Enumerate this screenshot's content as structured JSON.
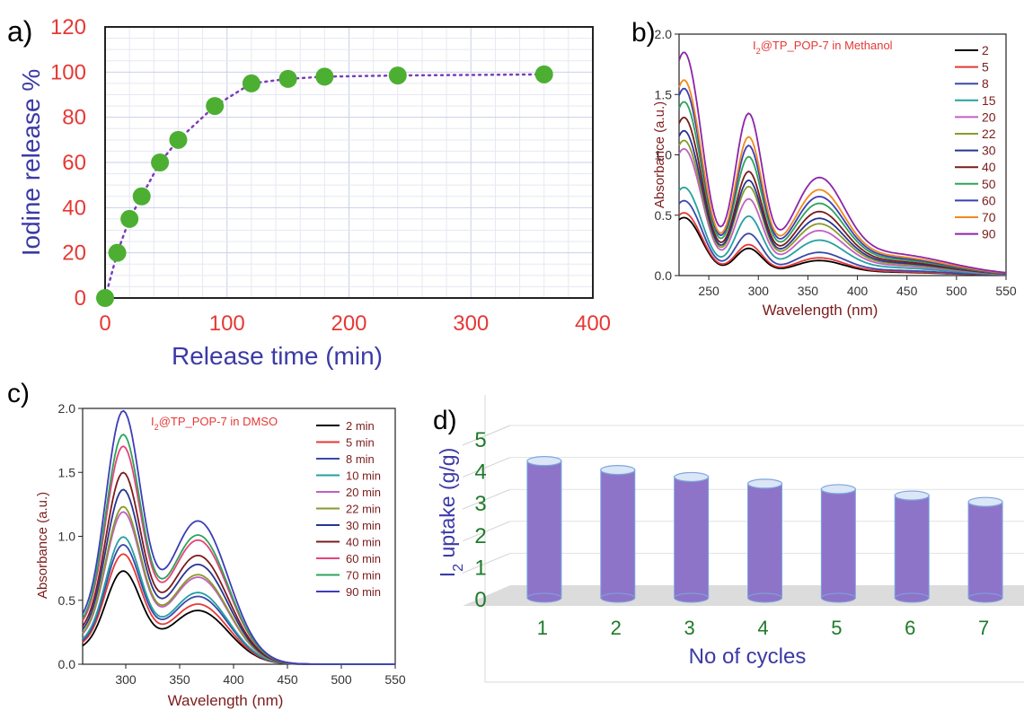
{
  "chart_data": [
    {
      "panel": "a)",
      "type": "scatter",
      "title": "",
      "xlabel": "Release time  (min)",
      "ylabel": "Iodine release %",
      "xlim": [
        0,
        400
      ],
      "ylim": [
        0,
        120
      ],
      "xticks": [
        "0",
        "100",
        "200",
        "300",
        "400"
      ],
      "yticks": [
        "0",
        "20",
        "40",
        "60",
        "80",
        "100",
        "120"
      ],
      "grid": true,
      "colors": {
        "marker": "#4caf32",
        "line": "#7a3fb8",
        "axis_label": "#3c3aa6",
        "tick": "#e53935"
      },
      "series": [
        {
          "x": [
            0,
            10,
            20,
            30,
            45,
            60,
            90,
            120,
            150,
            180,
            240,
            360
          ],
          "y": [
            0,
            20,
            35,
            45,
            60,
            70,
            85,
            95,
            97,
            98,
            98.5,
            99
          ]
        }
      ]
    },
    {
      "panel": "b)",
      "type": "line",
      "annotation": "I2@TP_POP-7 in Methanol",
      "xlabel": "Wavelength (nm)",
      "ylabel": "Absorbance (a.u.)",
      "xlim": [
        220,
        550
      ],
      "ylim": [
        0,
        2.0
      ],
      "xticks": [
        "250",
        "300",
        "350",
        "400",
        "450",
        "500",
        "550"
      ],
      "yticks": [
        "0.0",
        "0.5",
        "1.0",
        "1.5",
        "2.0"
      ],
      "legend": "right",
      "series": [
        {
          "name": "2",
          "color": "#000000",
          "peaks": [
            0.48,
            0.22,
            0.11
          ]
        },
        {
          "name": "5",
          "color": "#e53935",
          "peaks": [
            0.52,
            0.25,
            0.13
          ]
        },
        {
          "name": "8",
          "color": "#3949ab",
          "peaks": [
            0.62,
            0.34,
            0.17
          ]
        },
        {
          "name": "15",
          "color": "#26a0a0",
          "peaks": [
            0.73,
            0.48,
            0.26
          ]
        },
        {
          "name": "20",
          "color": "#c060c0",
          "peaks": [
            1.05,
            0.62,
            0.33
          ]
        },
        {
          "name": "22",
          "color": "#8a9a2a",
          "peaks": [
            1.12,
            0.72,
            0.38
          ]
        },
        {
          "name": "30",
          "color": "#283593",
          "peaks": [
            1.2,
            0.77,
            0.42
          ]
        },
        {
          "name": "40",
          "color": "#7b1c1c",
          "peaks": [
            1.31,
            0.84,
            0.47
          ]
        },
        {
          "name": "50",
          "color": "#2ea35a",
          "peaks": [
            1.44,
            0.96,
            0.53
          ]
        },
        {
          "name": "60",
          "color": "#3d3db8",
          "peaks": [
            1.55,
            1.05,
            0.58
          ]
        },
        {
          "name": "70",
          "color": "#f08a1c",
          "peaks": [
            1.62,
            1.12,
            0.63
          ]
        },
        {
          "name": "90",
          "color": "#8e24aa",
          "peaks": [
            1.85,
            1.31,
            0.72
          ]
        }
      ],
      "peak_positions_nm": [
        225,
        290,
        360
      ]
    },
    {
      "panel": "c)",
      "type": "line",
      "annotation": "I2@TP_POP-7 in DMSO",
      "xlabel": "Wavelength (nm)",
      "ylabel": "Absorbance (a.u.)",
      "xlim": [
        260,
        550
      ],
      "ylim": [
        0,
        2.0
      ],
      "xticks": [
        "300",
        "350",
        "400",
        "450",
        "500",
        "550"
      ],
      "yticks": [
        "0.0",
        "0.5",
        "1.0",
        "1.5",
        "2.0"
      ],
      "legend": "right",
      "series": [
        {
          "name": "2 min",
          "color": "#000000",
          "peaks": [
            0.71,
            0.42
          ]
        },
        {
          "name": "5 min",
          "color": "#e53935",
          "peaks": [
            0.84,
            0.47
          ]
        },
        {
          "name": "8 min",
          "color": "#3949ab",
          "peaks": [
            0.91,
            0.53
          ]
        },
        {
          "name": "10 min",
          "color": "#26a0a0",
          "peaks": [
            0.97,
            0.56
          ]
        },
        {
          "name": "20 min",
          "color": "#c060c0",
          "peaks": [
            1.16,
            0.68
          ]
        },
        {
          "name": "22 min",
          "color": "#8a9a2a",
          "peaks": [
            1.2,
            0.7
          ]
        },
        {
          "name": "30 min",
          "color": "#283593",
          "peaks": [
            1.33,
            0.78
          ]
        },
        {
          "name": "40 min",
          "color": "#7b1c1c",
          "peaks": [
            1.46,
            0.85
          ]
        },
        {
          "name": "60 min",
          "color": "#e8437a",
          "peaks": [
            1.66,
            0.97
          ]
        },
        {
          "name": "70 min",
          "color": "#2ea35a",
          "peaks": [
            1.75,
            1.01
          ]
        },
        {
          "name": "90 min",
          "color": "#3d3db8",
          "peaks": [
            1.93,
            1.12
          ]
        }
      ],
      "peak_positions_nm": [
        297,
        367
      ]
    },
    {
      "panel": "d)",
      "type": "bar",
      "xlabel": "No of cycles",
      "ylabel": "I2 uptake (g/g)",
      "ylim": [
        0,
        5
      ],
      "yticks": [
        "0",
        "1",
        "2",
        "3",
        "4",
        "5"
      ],
      "categories": [
        "1",
        "2",
        "3",
        "4",
        "5",
        "6",
        "7"
      ],
      "values": [
        4.28,
        4.0,
        3.78,
        3.57,
        3.4,
        3.2,
        3.0
      ],
      "colors": {
        "bar": "#8e74c8",
        "top": "#dbe6f6",
        "edge": "#7aa6e0",
        "axis_label": "#3c3aa6",
        "tick": "#1f7a2a"
      }
    }
  ]
}
